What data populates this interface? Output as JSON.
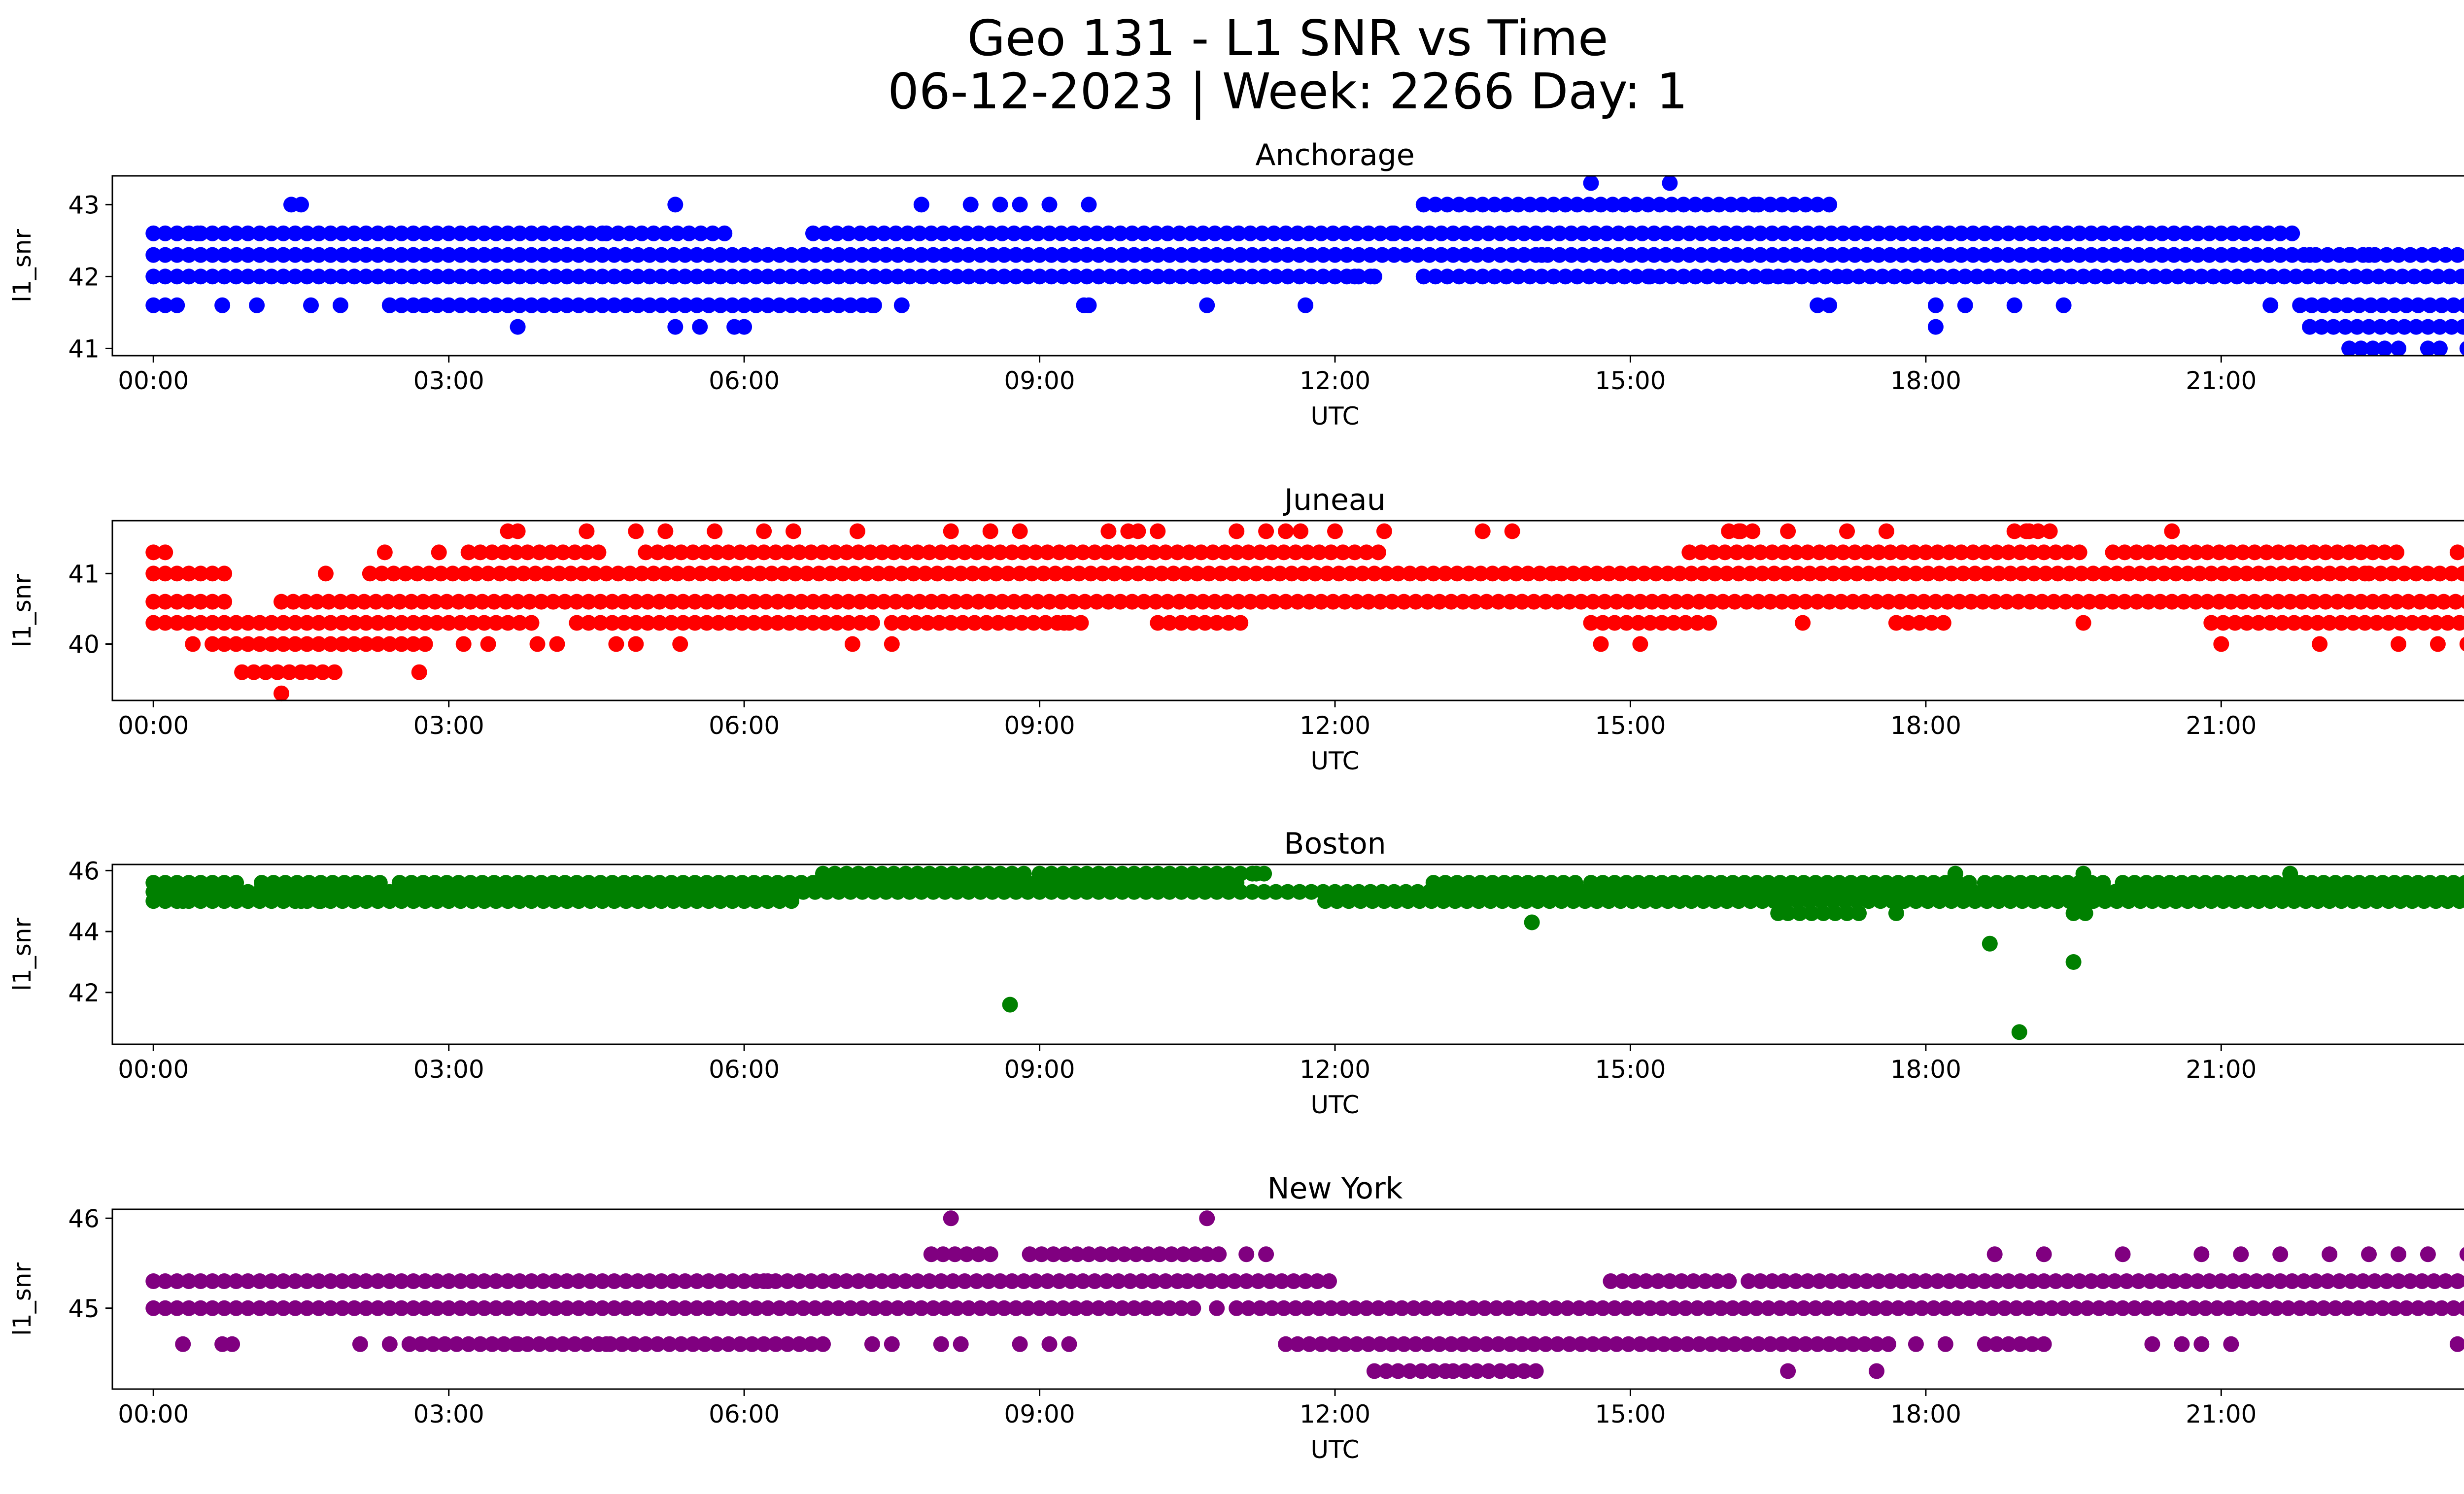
{
  "figure": {
    "title_line1": "Geo 131 - L1 SNR vs Time",
    "title_line2": "06-12-2023 | Week: 2266 Day: 1"
  },
  "chart_data": [
    {
      "type": "scatter",
      "title": "Anchorage",
      "xlabel": "UTC",
      "ylabel": "l1_snr",
      "color": "#0000ff",
      "xlim": [
        "23:35",
        "24:25"
      ],
      "ylim": [
        40.9,
        43.4
      ],
      "xticks": [
        "00:00",
        "03:00",
        "06:00",
        "09:00",
        "12:00",
        "15:00",
        "18:00",
        "21:00",
        "00:00"
      ],
      "yticks": [
        41,
        42,
        43
      ],
      "grid": false,
      "bands": [
        {
          "y": 42.3,
          "x": [
            [
              0.0,
              24.0
            ]
          ]
        },
        {
          "y": 42.0,
          "x": [
            [
              0.0,
              12.4
            ],
            [
              12.9,
              17.2
            ],
            [
              17.2,
              24.0
            ]
          ]
        },
        {
          "y": 42.6,
          "x": [
            [
              0.0,
              2.4
            ],
            [
              2.4,
              4.6
            ],
            [
              4.6,
              5.8
            ],
            [
              6.7,
              12.6
            ],
            [
              12.6,
              21.8
            ]
          ]
        },
        {
          "y": 41.6,
          "x": [
            [
              0.0,
              0.3
            ],
            [
              2.4,
              3.5
            ],
            [
              3.6,
              5.9
            ],
            [
              6.0,
              7.4
            ],
            [
              16.9,
              17.1
            ],
            [
              21.8,
              24.0
            ]
          ]
        },
        {
          "y": 43.0,
          "x": [
            [
              12.9,
              16.3
            ],
            [
              16.3,
              17.1
            ]
          ]
        },
        {
          "y": 41.3,
          "x": [
            [
              21.9,
              24.0
            ]
          ]
        },
        {
          "y": 41.0,
          "x": [
            [
              22.3,
              22.7
            ],
            [
              23.1,
              23.3
            ]
          ]
        }
      ],
      "points": [
        [
          0.45,
          42.6
        ],
        [
          1.4,
          43.0
        ],
        [
          1.5,
          43.0
        ],
        [
          0.7,
          41.6
        ],
        [
          1.05,
          41.6
        ],
        [
          1.6,
          41.6
        ],
        [
          1.9,
          41.6
        ],
        [
          2.75,
          41.6
        ],
        [
          3.7,
          41.3
        ],
        [
          5.3,
          43.0
        ],
        [
          5.3,
          41.3
        ],
        [
          5.55,
          41.3
        ],
        [
          5.9,
          41.3
        ],
        [
          6.0,
          41.3
        ],
        [
          7.8,
          43.0
        ],
        [
          8.3,
          43.0
        ],
        [
          8.6,
          43.0
        ],
        [
          8.8,
          43.0
        ],
        [
          9.1,
          43.0
        ],
        [
          9.5,
          43.0
        ],
        [
          9.45,
          41.6
        ],
        [
          9.5,
          41.6
        ],
        [
          10.7,
          41.6
        ],
        [
          11.7,
          41.6
        ],
        [
          12.2,
          42.0
        ],
        [
          12.4,
          42.0
        ],
        [
          14.6,
          43.3
        ],
        [
          15.4,
          43.3
        ],
        [
          15.2,
          42.0
        ],
        [
          14.1,
          42.3
        ],
        [
          16.4,
          42.0
        ],
        [
          16.6,
          42.0
        ],
        [
          18.1,
          41.6
        ],
        [
          18.1,
          41.3
        ],
        [
          18.4,
          41.6
        ],
        [
          18.9,
          41.6
        ],
        [
          19.4,
          41.6
        ],
        [
          21.5,
          41.6
        ],
        [
          22.3,
          42.3
        ],
        [
          22.5,
          42.3
        ],
        [
          21.9,
          42.3
        ],
        [
          23.85,
          42.3
        ],
        [
          22.8,
          41.0
        ],
        [
          23.5,
          41.0
        ],
        [
          23.55,
          41.0
        ],
        [
          7.3,
          41.6
        ],
        [
          7.6,
          41.6
        ]
      ]
    },
    {
      "type": "scatter",
      "title": "Juneau",
      "xlabel": "UTC",
      "ylabel": "l1_snr",
      "color": "#ff0000",
      "xlim": [
        "23:35",
        "24:25"
      ],
      "ylim": [
        39.2,
        41.75
      ],
      "xticks": [
        "00:00",
        "03:00",
        "06:00",
        "09:00",
        "12:00",
        "15:00",
        "18:00",
        "21:00",
        "00:00"
      ],
      "yticks": [
        40,
        41
      ],
      "grid": false,
      "bands": [
        {
          "y": 40.6,
          "x": [
            [
              0.0,
              0.8
            ],
            [
              1.3,
              24.0
            ]
          ]
        },
        {
          "y": 40.3,
          "x": [
            [
              0.0,
              3.9
            ],
            [
              4.3,
              7.4
            ],
            [
              7.5,
              9.5
            ],
            [
              10.2,
              11.1
            ],
            [
              14.6,
              15.8
            ],
            [
              17.7,
              18.2
            ],
            [
              20.9,
              24.0
            ]
          ]
        },
        {
          "y": 41.0,
          "x": [
            [
              0.0,
              0.8
            ],
            [
              2.2,
              14.3
            ],
            [
              14.3,
              22.5
            ],
            [
              22.5,
              24.0
            ]
          ]
        },
        {
          "y": 41.3,
          "x": [
            [
              0.0,
              0.2
            ],
            [
              3.2,
              4.6
            ],
            [
              5.0,
              12.5
            ],
            [
              15.6,
              19.6
            ],
            [
              19.9,
              22.8
            ]
          ]
        },
        {
          "y": 40.0,
          "x": [
            [
              0.6,
              2.8
            ]
          ]
        },
        {
          "y": 39.6,
          "x": [
            [
              0.9,
              1.5
            ],
            [
              1.6,
              1.9
            ]
          ]
        },
        {
          "y": 41.6,
          "x": [
            [
              16.0,
              16.3
            ],
            [
              18.9,
              19.3
            ]
          ]
        }
      ],
      "points": [
        [
          0.4,
          40.0
        ],
        [
          1.3,
          39.3
        ],
        [
          1.75,
          41.0
        ],
        [
          2.7,
          39.6
        ],
        [
          2.35,
          41.3
        ],
        [
          2.9,
          41.3
        ],
        [
          3.15,
          40.0
        ],
        [
          3.4,
          40.0
        ],
        [
          3.6,
          41.6
        ],
        [
          3.7,
          41.6
        ],
        [
          3.9,
          40.0
        ],
        [
          4.1,
          40.0
        ],
        [
          4.4,
          41.6
        ],
        [
          4.9,
          41.6
        ],
        [
          5.2,
          41.6
        ],
        [
          4.7,
          40.0
        ],
        [
          4.9,
          40.0
        ],
        [
          5.35,
          40.0
        ],
        [
          5.7,
          41.6
        ],
        [
          6.2,
          41.6
        ],
        [
          6.5,
          41.6
        ],
        [
          7.15,
          41.6
        ],
        [
          7.1,
          40.0
        ],
        [
          7.5,
          40.0
        ],
        [
          8.1,
          41.6
        ],
        [
          8.5,
          41.6
        ],
        [
          8.8,
          41.6
        ],
        [
          9.25,
          40.3
        ],
        [
          9.7,
          41.6
        ],
        [
          9.9,
          41.6
        ],
        [
          10.0,
          41.6
        ],
        [
          10.2,
          41.6
        ],
        [
          11.0,
          41.6
        ],
        [
          11.3,
          41.6
        ],
        [
          11.5,
          41.6
        ],
        [
          11.65,
          41.6
        ],
        [
          12.0,
          41.6
        ],
        [
          12.5,
          41.6
        ],
        [
          13.5,
          41.6
        ],
        [
          13.8,
          41.6
        ],
        [
          13.9,
          40.6
        ],
        [
          14.7,
          40.0
        ],
        [
          15.1,
          40.0
        ],
        [
          16.6,
          41.6
        ],
        [
          16.75,
          40.3
        ],
        [
          17.2,
          41.6
        ],
        [
          17.6,
          41.6
        ],
        [
          19.6,
          40.3
        ],
        [
          20.5,
          41.6
        ],
        [
          21.0,
          40.0
        ],
        [
          22.0,
          40.0
        ],
        [
          22.8,
          40.0
        ],
        [
          23.2,
          40.0
        ],
        [
          23.5,
          40.0
        ],
        [
          23.8,
          40.0
        ],
        [
          23.4,
          41.3
        ],
        [
          16.1,
          41.6
        ],
        [
          19.05,
          41.6
        ]
      ]
    },
    {
      "type": "scatter",
      "title": "Boston",
      "xlabel": "UTC",
      "ylabel": "l1_snr",
      "color": "#008000",
      "xlim": [
        "23:35",
        "24:25"
      ],
      "ylim": [
        40.3,
        46.2
      ],
      "xticks": [
        "00:00",
        "03:00",
        "06:00",
        "09:00",
        "12:00",
        "15:00",
        "18:00",
        "21:00",
        "00:00"
      ],
      "yticks": [
        42,
        44,
        46
      ],
      "grid": false,
      "bands": [
        {
          "y": 45.3,
          "x": [
            [
              0.0,
              24.0
            ]
          ]
        },
        {
          "y": 45.0,
          "x": [
            [
              0.0,
              6.5
            ],
            [
              11.9,
              17.8
            ],
            [
              17.9,
              24.0
            ]
          ]
        },
        {
          "y": 45.6,
          "x": [
            [
              0.0,
              0.9
            ],
            [
              1.1,
              2.4
            ],
            [
              2.5,
              6.8
            ],
            [
              6.8,
              11.0
            ],
            [
              13.0,
              14.5
            ],
            [
              14.6,
              18.5
            ],
            [
              18.6,
              19.8
            ],
            [
              20.0,
              24.0
            ]
          ]
        },
        {
          "y": 45.9,
          "x": [
            [
              6.8,
              8.9
            ],
            [
              9.0,
              11.3
            ]
          ]
        },
        {
          "y": 44.6,
          "x": [
            [
              16.6,
              17.4
            ],
            [
              19.5,
              19.7
            ]
          ]
        }
      ],
      "points": [
        [
          8.7,
          41.6
        ],
        [
          14.0,
          44.3
        ],
        [
          18.65,
          43.6
        ],
        [
          18.95,
          40.7
        ],
        [
          19.5,
          43.0
        ],
        [
          17.7,
          44.6
        ],
        [
          16.5,
          44.6
        ],
        [
          18.3,
          45.9
        ],
        [
          19.6,
          45.9
        ],
        [
          21.7,
          45.9
        ],
        [
          0.3,
          45.0
        ],
        [
          1.5,
          45.0
        ],
        [
          1.7,
          45.0
        ],
        [
          11.2,
          45.9
        ]
      ]
    },
    {
      "type": "scatter",
      "title": "New York",
      "xlabel": "UTC",
      "ylabel": "l1_snr",
      "color": "#800080",
      "xlim": [
        "23:35",
        "24:25"
      ],
      "ylim": [
        44.1,
        46.1
      ],
      "xticks": [
        "00:00",
        "03:00",
        "06:00",
        "09:00",
        "12:00",
        "15:00",
        "18:00",
        "21:00",
        "00:00"
      ],
      "yticks": [
        45,
        46
      ],
      "grid": false,
      "bands": [
        {
          "y": 45.0,
          "x": [
            [
              0.0,
              10.6
            ],
            [
              11.0,
              24.0
            ]
          ]
        },
        {
          "y": 45.3,
          "x": [
            [
              0.0,
              3.5
            ],
            [
              3.6,
              6.3
            ],
            [
              6.2,
              10.5
            ],
            [
              10.5,
              12.0
            ],
            [
              14.8,
              16.0
            ],
            [
              16.2,
              24.0
            ]
          ]
        },
        {
          "y": 44.6,
          "x": [
            [
              2.6,
              6.8
            ],
            [
              11.5,
              17.7
            ],
            [
              18.6,
              19.3
            ]
          ]
        },
        {
          "y": 45.6,
          "x": [
            [
              7.9,
              8.6
            ],
            [
              8.9,
              10.9
            ]
          ]
        },
        {
          "y": 44.3,
          "x": [
            [
              12.4,
              13.2
            ],
            [
              13.2,
              14.1
            ]
          ]
        }
      ],
      "points": [
        [
          0.3,
          44.6
        ],
        [
          0.7,
          44.6
        ],
        [
          0.8,
          44.6
        ],
        [
          2.1,
          44.6
        ],
        [
          2.4,
          44.6
        ],
        [
          7.3,
          44.6
        ],
        [
          7.5,
          44.6
        ],
        [
          8.0,
          44.6
        ],
        [
          8.2,
          44.6
        ],
        [
          8.8,
          44.6
        ],
        [
          9.1,
          44.6
        ],
        [
          9.3,
          44.6
        ],
        [
          8.1,
          46.0
        ],
        [
          10.7,
          46.0
        ],
        [
          10.8,
          45.0
        ],
        [
          11.1,
          45.6
        ],
        [
          11.3,
          45.6
        ],
        [
          14.6,
          45.0
        ],
        [
          16.6,
          44.3
        ],
        [
          17.5,
          44.3
        ],
        [
          18.7,
          45.6
        ],
        [
          19.2,
          45.6
        ],
        [
          20.0,
          45.6
        ],
        [
          20.8,
          45.6
        ],
        [
          21.2,
          45.6
        ],
        [
          21.6,
          45.6
        ],
        [
          22.1,
          45.6
        ],
        [
          22.5,
          45.6
        ],
        [
          22.8,
          45.6
        ],
        [
          23.1,
          45.6
        ],
        [
          23.5,
          45.6
        ],
        [
          23.4,
          44.6
        ],
        [
          21.1,
          44.6
        ],
        [
          20.3,
          44.6
        ],
        [
          20.6,
          44.6
        ],
        [
          20.8,
          44.6
        ],
        [
          17.9,
          44.6
        ],
        [
          18.2,
          44.6
        ],
        [
          3.7,
          44.6
        ],
        [
          4.6,
          44.6
        ]
      ]
    }
  ]
}
